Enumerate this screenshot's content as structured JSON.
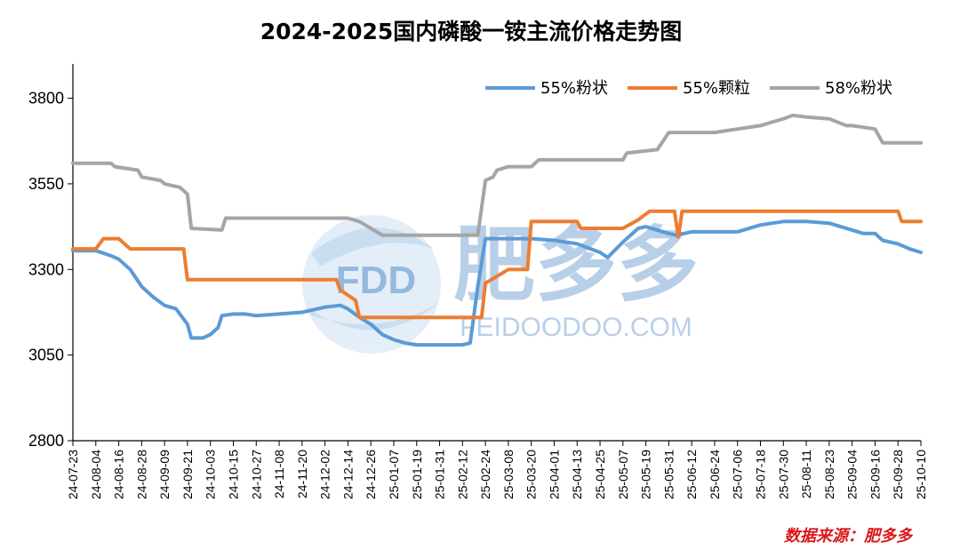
{
  "source_text": "数据来源：肥多多",
  "watermark": {
    "logo_text": "FDD",
    "brand_cn": "肥多多",
    "brand_url": "FEIDOODOO.COM"
  },
  "colors": {
    "55%粉状": "#5b9bd5",
    "55%颗粒": "#ed7d31",
    "58%粉状": "#a5a5a5",
    "watermark": "#7fa9d6"
  },
  "chart_data": {
    "type": "line",
    "title": "2024-2025国内磷酸一铵主流价格走势图",
    "xlabel": "",
    "ylabel": "",
    "ylim": [
      2800,
      3900
    ],
    "yticks": [
      2800,
      3050,
      3300,
      3550,
      3800
    ],
    "grid": false,
    "legend_position": "top-right",
    "x_tick_labels": [
      "24-07-23",
      "24-08-04",
      "24-08-16",
      "24-08-28",
      "24-09-09",
      "24-09-21",
      "24-10-03",
      "24-10-15",
      "24-10-27",
      "24-11-08",
      "24-11-20",
      "24-12-02",
      "24-12-14",
      "24-12-26",
      "25-01-07",
      "25-01-19",
      "25-01-31",
      "25-02-12",
      "25-02-24",
      "25-03-08",
      "25-03-20",
      "25-04-01",
      "25-04-13",
      "25-04-25",
      "25-05-07",
      "25-05-19",
      "25-05-31",
      "25-06-12",
      "25-06-24",
      "25-07-06",
      "25-07-18",
      "25-07-30",
      "25-08-11",
      "25-08-23",
      "25-09-04",
      "25-09-16",
      "25-09-28",
      "25-10-10"
    ],
    "series": [
      {
        "name": "55%粉状",
        "color": "#5b9bd5",
        "points": [
          [
            "24-07-23",
            3355
          ],
          [
            "24-08-04",
            3355
          ],
          [
            "24-08-12",
            3340
          ],
          [
            "24-08-16",
            3330
          ],
          [
            "24-08-22",
            3300
          ],
          [
            "24-08-28",
            3250
          ],
          [
            "24-09-03",
            3220
          ],
          [
            "24-09-09",
            3195
          ],
          [
            "24-09-15",
            3185
          ],
          [
            "24-09-21",
            3140
          ],
          [
            "24-09-23",
            3100
          ],
          [
            "24-09-29",
            3100
          ],
          [
            "24-10-03",
            3110
          ],
          [
            "24-10-07",
            3130
          ],
          [
            "24-10-09",
            3165
          ],
          [
            "24-10-15",
            3170
          ],
          [
            "24-10-21",
            3170
          ],
          [
            "24-10-27",
            3165
          ],
          [
            "24-11-08",
            3170
          ],
          [
            "24-11-20",
            3175
          ],
          [
            "24-12-02",
            3190
          ],
          [
            "24-12-10",
            3195
          ],
          [
            "24-12-14",
            3185
          ],
          [
            "24-12-20",
            3160
          ],
          [
            "24-12-26",
            3140
          ],
          [
            "25-01-01",
            3110
          ],
          [
            "25-01-07",
            3095
          ],
          [
            "25-01-13",
            3085
          ],
          [
            "25-01-19",
            3080
          ],
          [
            "25-01-31",
            3080
          ],
          [
            "25-02-12",
            3080
          ],
          [
            "25-02-16",
            3085
          ],
          [
            "25-02-20",
            3250
          ],
          [
            "25-02-22",
            3320
          ],
          [
            "25-02-24",
            3390
          ],
          [
            "25-03-08",
            3390
          ],
          [
            "25-03-20",
            3390
          ],
          [
            "25-04-01",
            3385
          ],
          [
            "25-04-13",
            3375
          ],
          [
            "25-04-25",
            3350
          ],
          [
            "25-04-29",
            3335
          ],
          [
            "25-05-07",
            3380
          ],
          [
            "25-05-15",
            3420
          ],
          [
            "25-05-19",
            3425
          ],
          [
            "25-05-25",
            3415
          ],
          [
            "25-05-31",
            3405
          ],
          [
            "25-06-04",
            3400
          ],
          [
            "25-06-12",
            3410
          ],
          [
            "25-06-24",
            3410
          ],
          [
            "25-07-06",
            3410
          ],
          [
            "25-07-18",
            3430
          ],
          [
            "25-07-30",
            3440
          ],
          [
            "25-08-11",
            3440
          ],
          [
            "25-08-23",
            3435
          ],
          [
            "25-09-04",
            3415
          ],
          [
            "25-09-10",
            3405
          ],
          [
            "25-09-16",
            3405
          ],
          [
            "25-09-20",
            3385
          ],
          [
            "25-09-28",
            3375
          ],
          [
            "25-10-04",
            3360
          ],
          [
            "25-10-10",
            3350
          ]
        ]
      },
      {
        "name": "55%颗粒",
        "color": "#ed7d31",
        "points": [
          [
            "24-07-23",
            3360
          ],
          [
            "24-08-04",
            3360
          ],
          [
            "24-08-08",
            3390
          ],
          [
            "24-08-16",
            3390
          ],
          [
            "24-08-22",
            3360
          ],
          [
            "24-09-09",
            3360
          ],
          [
            "24-09-19",
            3360
          ],
          [
            "24-09-21",
            3270
          ],
          [
            "24-10-15",
            3270
          ],
          [
            "24-11-08",
            3270
          ],
          [
            "24-12-02",
            3270
          ],
          [
            "24-12-08",
            3270
          ],
          [
            "24-12-10",
            3240
          ],
          [
            "24-12-18",
            3210
          ],
          [
            "24-12-20",
            3160
          ],
          [
            "25-01-07",
            3160
          ],
          [
            "25-02-12",
            3160
          ],
          [
            "25-02-22",
            3160
          ],
          [
            "25-02-24",
            3260
          ],
          [
            "25-03-08",
            3300
          ],
          [
            "25-03-18",
            3300
          ],
          [
            "25-03-20",
            3440
          ],
          [
            "25-04-13",
            3440
          ],
          [
            "25-04-15",
            3420
          ],
          [
            "25-05-07",
            3420
          ],
          [
            "25-05-15",
            3445
          ],
          [
            "25-05-21",
            3470
          ],
          [
            "25-06-03",
            3470
          ],
          [
            "25-06-05",
            3395
          ],
          [
            "25-06-07",
            3470
          ],
          [
            "25-06-24",
            3470
          ],
          [
            "25-07-18",
            3470
          ],
          [
            "25-08-11",
            3470
          ],
          [
            "25-09-04",
            3470
          ],
          [
            "25-09-16",
            3470
          ],
          [
            "25-09-28",
            3470
          ],
          [
            "25-09-30",
            3440
          ],
          [
            "25-10-10",
            3440
          ]
        ]
      },
      {
        "name": "58%粉状",
        "color": "#a5a5a5",
        "points": [
          [
            "24-07-23",
            3610
          ],
          [
            "24-08-12",
            3610
          ],
          [
            "24-08-14",
            3600
          ],
          [
            "24-08-26",
            3590
          ],
          [
            "24-08-28",
            3570
          ],
          [
            "24-09-07",
            3560
          ],
          [
            "24-09-09",
            3550
          ],
          [
            "24-09-17",
            3540
          ],
          [
            "24-09-21",
            3520
          ],
          [
            "24-09-23",
            3420
          ],
          [
            "24-10-09",
            3415
          ],
          [
            "24-10-11",
            3450
          ],
          [
            "24-11-08",
            3450
          ],
          [
            "24-12-02",
            3450
          ],
          [
            "24-12-14",
            3450
          ],
          [
            "24-12-20",
            3440
          ],
          [
            "24-12-26",
            3420
          ],
          [
            "25-01-01",
            3400
          ],
          [
            "25-01-07",
            3400
          ],
          [
            "25-01-31",
            3400
          ],
          [
            "25-02-20",
            3400
          ],
          [
            "25-02-24",
            3560
          ],
          [
            "25-02-28",
            3570
          ],
          [
            "25-03-02",
            3590
          ],
          [
            "25-03-08",
            3600
          ],
          [
            "25-03-20",
            3600
          ],
          [
            "25-03-24",
            3620
          ],
          [
            "25-04-13",
            3620
          ],
          [
            "25-04-25",
            3620
          ],
          [
            "25-05-07",
            3620
          ],
          [
            "25-05-09",
            3640
          ],
          [
            "25-05-25",
            3650
          ],
          [
            "25-05-31",
            3700
          ],
          [
            "25-06-12",
            3700
          ],
          [
            "25-06-24",
            3700
          ],
          [
            "25-07-06",
            3710
          ],
          [
            "25-07-18",
            3720
          ],
          [
            "25-07-24",
            3730
          ],
          [
            "25-07-30",
            3740
          ],
          [
            "25-08-04",
            3750
          ],
          [
            "25-08-11",
            3745
          ],
          [
            "25-08-23",
            3740
          ],
          [
            "25-09-01",
            3720
          ],
          [
            "25-09-04",
            3720
          ],
          [
            "25-09-16",
            3710
          ],
          [
            "25-09-20",
            3670
          ],
          [
            "25-10-10",
            3670
          ]
        ]
      }
    ]
  }
}
